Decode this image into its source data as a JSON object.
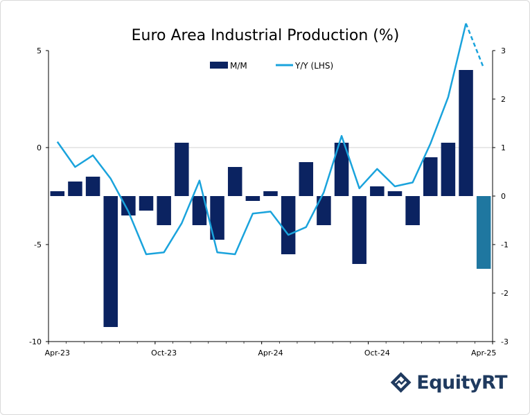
{
  "chart_data": {
    "type": "bar+line",
    "title": "Euro Area Industrial Production (%)",
    "legend": [
      {
        "label": "M/M",
        "kind": "bar"
      },
      {
        "label": "Y/Y (LHS)",
        "kind": "line"
      }
    ],
    "x_ticks": [
      "Apr-23",
      "Oct-23",
      "Apr-24",
      "Oct-24",
      "Apr-25"
    ],
    "x_tick_index": [
      0,
      6,
      12,
      18,
      24
    ],
    "left_axis": {
      "min": -10,
      "max": 5,
      "ticks": [
        5,
        0,
        -5,
        -10
      ]
    },
    "right_axis": {
      "min": -3,
      "max": 3,
      "ticks": [
        3,
        2,
        1,
        0,
        -1,
        -2,
        -3
      ]
    },
    "bar_series": {
      "name": "M/M",
      "axis": "right",
      "values": [
        0.1,
        0.3,
        0.4,
        -2.7,
        -0.4,
        -0.3,
        -0.6,
        1.1,
        -0.6,
        -0.9,
        0.6,
        -0.1,
        0.1,
        -1.2,
        0.7,
        -0.6,
        1.1,
        -1.4,
        0.2,
        0.1,
        -0.6,
        0.8,
        1.1,
        2.6,
        -1.5
      ],
      "highlight_last": true
    },
    "line_series": {
      "name": "Y/Y (LHS)",
      "axis": "left",
      "values": [
        0.3,
        -1.0,
        -0.4,
        -1.6,
        -3.3,
        -5.5,
        -5.4,
        -3.9,
        -1.7,
        -5.4,
        -5.5,
        -3.4,
        -3.3,
        -4.5,
        -4.1,
        -2.3,
        0.6,
        -2.1,
        -1.1,
        -2.0,
        -1.8,
        0.2,
        2.6,
        6.4,
        4.1
      ],
      "dashed_from_index": 23
    },
    "colors": {
      "bar": "#0b2361",
      "bar_highlight": "#1f77a0",
      "line": "#1aa3dc",
      "axis": "#000000",
      "zero_line": "#d0d0d0"
    }
  },
  "logo": {
    "text": "EquityRT"
  }
}
